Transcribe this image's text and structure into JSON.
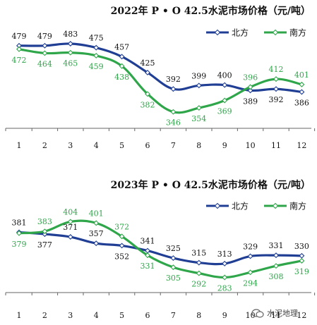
{
  "chart_data": [
    {
      "type": "line",
      "title": "2022年 P • O 42.5水泥市场价格（元/吨）",
      "categories": [
        "1",
        "2",
        "3",
        "4",
        "5",
        "6",
        "7",
        "8",
        "9",
        "10",
        "11",
        "12"
      ],
      "series": [
        {
          "name": "北方",
          "color": "#1f3e94",
          "values": [
            479,
            479,
            483,
            475,
            457,
            425,
            392,
            399,
            400,
            389,
            392,
            386
          ]
        },
        {
          "name": "南方",
          "color": "#2fa64a",
          "values": [
            472,
            464,
            465,
            459,
            438,
            382,
            346,
            354,
            369,
            396,
            412,
            401
          ]
        }
      ],
      "ylim": [
        330,
        500
      ],
      "legend": "top-right",
      "grid": false
    },
    {
      "type": "line",
      "title": "2023年 P • O 42.5水泥市场价格（元/吨）",
      "categories": [
        "1",
        "2",
        "3",
        "4",
        "5",
        "6",
        "7",
        "8",
        "9",
        "10",
        "11",
        "12"
      ],
      "series": [
        {
          "name": "北方",
          "color": "#1f3e94",
          "values": [
            381,
            377,
            371,
            357,
            352,
            341,
            325,
            315,
            313,
            329,
            331,
            330
          ]
        },
        {
          "name": "南方",
          "color": "#2fa64a",
          "values": [
            379,
            383,
            404,
            401,
            372,
            331,
            305,
            292,
            283,
            294,
            308,
            319
          ]
        }
      ],
      "ylim": [
        270,
        420
      ],
      "legend": "top-right",
      "grid": false
    }
  ],
  "watermark": {
    "text": "水泥地理",
    "icon": "wechat-icon"
  }
}
